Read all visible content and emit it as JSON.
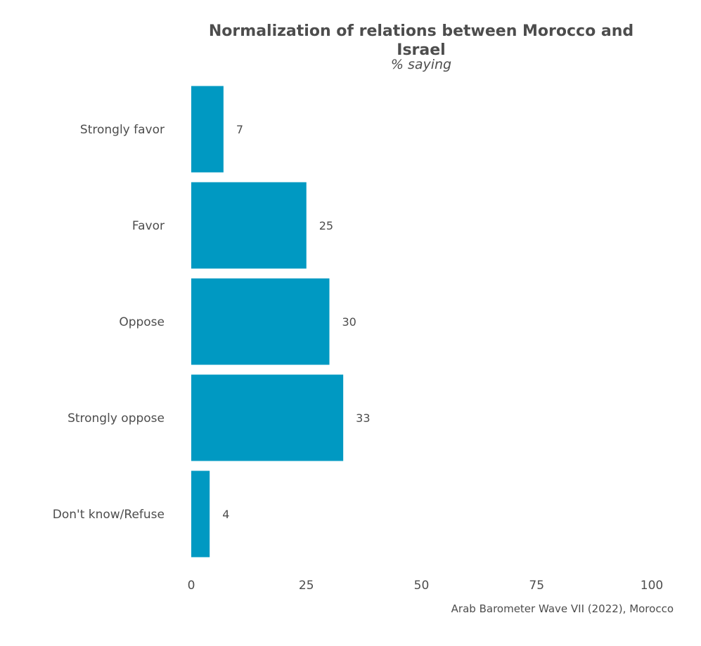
{
  "chart_data": {
    "type": "bar",
    "orientation": "horizontal",
    "title_lines": [
      "Normalization of relations between Morocco and",
      "Israel"
    ],
    "subtitle": "% saying",
    "categories": [
      "Strongly favor",
      "Favor",
      "Oppose",
      "Strongly oppose",
      "Don't know/Refuse"
    ],
    "values": [
      7,
      25,
      30,
      33,
      4
    ],
    "value_labels": [
      "7",
      "25",
      "30",
      "33",
      "4"
    ],
    "xlim": [
      0,
      100
    ],
    "xticks": [
      0,
      25,
      50,
      75,
      100
    ],
    "xtick_labels": [
      "0",
      "25",
      "50",
      "75",
      "100"
    ],
    "xlabel": "",
    "ylabel": "",
    "grid": false,
    "legend": "none",
    "bar_color": "#0099c2",
    "caption": "Arab Barometer Wave VII (2022), Morocco"
  }
}
